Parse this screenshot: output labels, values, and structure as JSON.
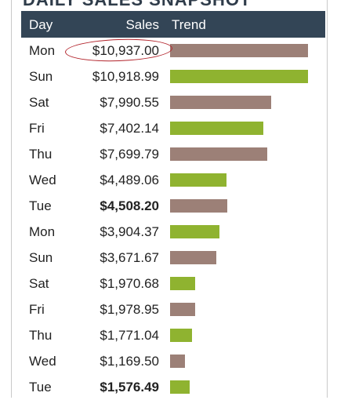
{
  "title": "DAILY SALES SNAPSHOT",
  "columns": {
    "day": "Day",
    "sales": "Sales",
    "trend": "Trend"
  },
  "colors": {
    "header_bg": "#334556",
    "bar_a": "#9c8077",
    "bar_b": "#8fb330",
    "highlight": "#b2232b"
  },
  "chart_data": {
    "type": "bar",
    "orientation": "horizontal",
    "categories": [
      "Mon",
      "Sun",
      "Sat",
      "Fri",
      "Thu",
      "Wed",
      "Tue",
      "Mon",
      "Sun",
      "Sat",
      "Fri",
      "Thu",
      "Wed",
      "Tue"
    ],
    "values": [
      10937.0,
      10918.99,
      7990.55,
      7402.14,
      7699.79,
      4489.06,
      4508.2,
      3904.37,
      3671.67,
      1970.68,
      1978.95,
      1771.04,
      1169.5,
      1576.49
    ],
    "labels": [
      "$10,937.00",
      "$10,918.99",
      "$7,990.55",
      "$7,402.14",
      "$7,699.79",
      "$4,489.06",
      "$4,508.20",
      "$3,904.37",
      "$3,671.67",
      "$1,970.68",
      "$1,978.95",
      "$1,771.04",
      "$1,169.50",
      "$1,576.49"
    ],
    "bold": [
      false,
      false,
      false,
      false,
      false,
      false,
      true,
      false,
      false,
      false,
      false,
      false,
      false,
      true
    ],
    "bar_colors": [
      "#9c8077",
      "#8fb330",
      "#9c8077",
      "#8fb330",
      "#9c8077",
      "#8fb330",
      "#9c8077",
      "#8fb330",
      "#9c8077",
      "#8fb330",
      "#9c8077",
      "#8fb330",
      "#9c8077",
      "#8fb330"
    ],
    "circled_row": 0
  }
}
